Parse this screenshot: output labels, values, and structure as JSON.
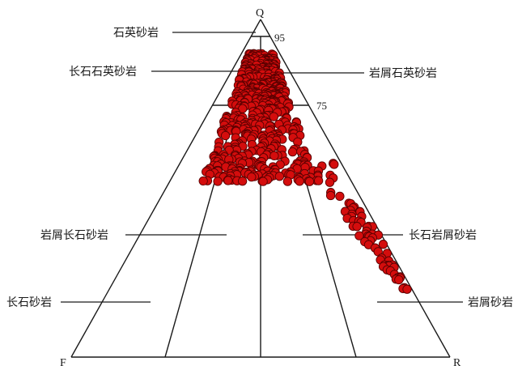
{
  "vertices": {
    "Q": "Q",
    "F": "F",
    "R": "R"
  },
  "percent_labels": {
    "p95": "95",
    "p75": "75"
  },
  "fields": {
    "quartz_sandstone": "石英砂岩",
    "feldspathic_quartz_sandstone": "长石石英砂岩",
    "lithic_quartz_sandstone": "岩屑石英砂岩",
    "lithic_arkose": "岩屑长石砂岩",
    "feldspathic_litharenite": "长石岩屑砂岩",
    "arkose": "长石砂岩",
    "litharenite": "岩屑砂岩"
  },
  "colors": {
    "point_fill": "#d40d0d",
    "point_stroke": "#5a0000",
    "line": "#1a1a1a"
  },
  "samples": {
    "description_of_encoding": "ternary samples: q = quartz fraction, r = share of rock fragments in (F+R)",
    "points": []
  }
}
